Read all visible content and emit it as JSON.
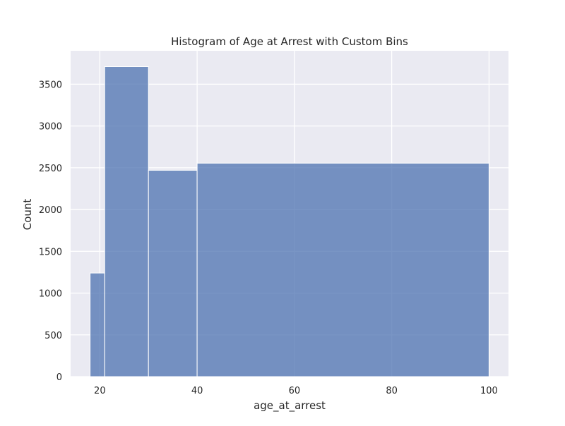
{
  "chart_data": {
    "type": "bar",
    "title": "Histogram of Age at Arrest with Custom Bins",
    "xlabel": "age_at_arrest",
    "ylabel": "Count",
    "bins": [
      {
        "start": 18,
        "end": 21,
        "count": 1240
      },
      {
        "start": 21,
        "end": 30,
        "count": 3710
      },
      {
        "start": 30,
        "end": 40,
        "count": 2470
      },
      {
        "start": 40,
        "end": 100,
        "count": 2555
      }
    ],
    "xlim": [
      14,
      104
    ],
    "ylim": [
      0,
      3900
    ],
    "xticks": [
      20,
      40,
      60,
      80,
      100
    ],
    "yticks": [
      0,
      500,
      1000,
      1500,
      2000,
      2500,
      3000,
      3500
    ],
    "grid": true,
    "bar_color": "#4c72b0",
    "plot_background": "#eaeaf2"
  }
}
